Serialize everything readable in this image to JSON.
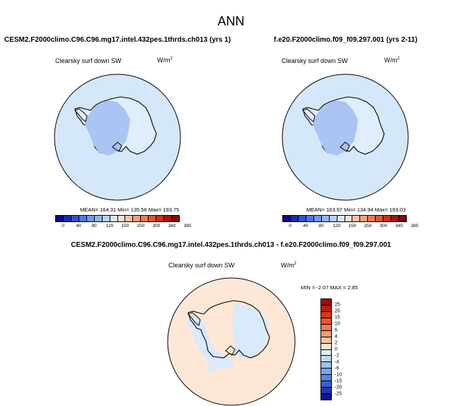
{
  "title": "ANN",
  "panels": [
    {
      "case_title": "CESM2.F2000climo.C96.C96.mg17.intel.432pes.1thrds.ch013 (yrs 1)",
      "variable": "Clearsky surf down SW",
      "units": "W/m",
      "units_exp": "2",
      "stats": "MEAN= 164.31  Min= 135.56  Max= 193.75"
    },
    {
      "case_title": "f.e20.F2000climo.f09_f09.297.001 (yrs 2-11)",
      "variable": "Clearsky surf down SW",
      "units": "W/m",
      "units_exp": "2",
      "stats": "MEAN= 163.97  Min= 134.94  Max= 193.03"
    }
  ],
  "diff_panel": {
    "case_title": "CESM2.F2000climo.C96.C96.mg17.intel.432pes.1thrds.ch013 - f.e20.F2000climo.f09_f09.297.001",
    "variable": "Clearsky surf down SW",
    "units": "W/m",
    "units_exp": "2",
    "stats": "MIN =  -2.07 MAX =   2.85"
  },
  "colorbar_main": {
    "ticks": [
      "0",
      "40",
      "80",
      "120",
      "150",
      "250",
      "300",
      "340",
      "380"
    ],
    "colors": [
      "#0c0a8a",
      "#1e2bb0",
      "#2f55d4",
      "#4b79ea",
      "#6f98f2",
      "#95b6f6",
      "#b9d2f8",
      "#d8e8fb",
      "#fbe3d2",
      "#f9c4a6",
      "#f4a17a",
      "#ee7b52",
      "#e4552f",
      "#cc3019",
      "#a8160c",
      "#7d0a04"
    ]
  },
  "colorbar_diff": {
    "ticks": [
      "25",
      "20",
      "15",
      "10",
      "6",
      "4",
      "2",
      "0",
      "-2",
      "-4",
      "-6",
      "-10",
      "-15",
      "-20",
      "-25"
    ],
    "colors": [
      "#9b0d05",
      "#bd1d0c",
      "#dc3515",
      "#f0532a",
      "#f57848",
      "#f89c70",
      "#fbc09e",
      "#fde2cf",
      "#dfeefc",
      "#c0d9f8",
      "#9fc1f4",
      "#7da6ee",
      "#5a85e3",
      "#3a5fd0",
      "#2336b4",
      "#0f1690"
    ]
  },
  "map_colors": {
    "abs_ocean": "#d5e7fb",
    "abs_continent": "#e0eefc",
    "abs_interior": "#aac4f4",
    "diff_ocean": "#fde8d6",
    "diff_patch": "#d8eafb"
  }
}
